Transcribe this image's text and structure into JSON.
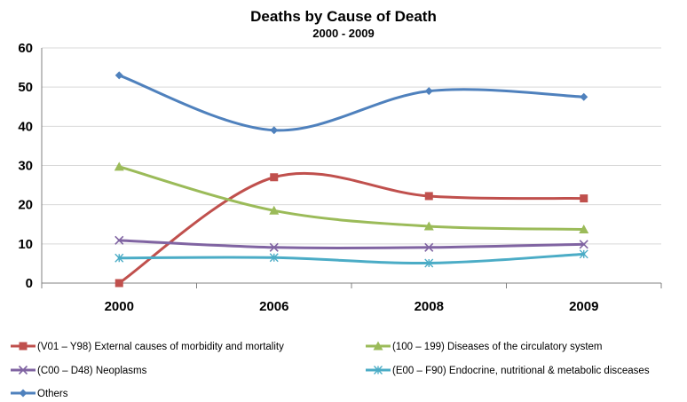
{
  "chart_data": {
    "type": "line",
    "title": "Deaths by Cause of Death",
    "subtitle": "2000 - 2009",
    "xlabel": "",
    "ylabel": "",
    "categories": [
      "2000",
      "2006",
      "2008",
      "2009"
    ],
    "ylim": [
      0,
      60
    ],
    "yticks": [
      0,
      10,
      20,
      30,
      40,
      50,
      60
    ],
    "grid": "horizontal",
    "legend_position": "bottom",
    "smooth": true,
    "series": [
      {
        "name": "(V01 – Y98) External causes of morbidity and mortality",
        "color": "#c0504d",
        "marker": "square",
        "values": [
          0,
          27,
          22.2,
          21.6
        ]
      },
      {
        "name": "(100 – 199) Diseases of the circulatory system",
        "color": "#9bbb59",
        "marker": "triangle",
        "values": [
          29.7,
          18.5,
          14.5,
          13.7
        ]
      },
      {
        "name": "(C00 – D48) Neoplasms",
        "color": "#8064a2",
        "marker": "x",
        "values": [
          10.9,
          9.1,
          9.1,
          9.9
        ]
      },
      {
        "name": "(E00 – F90) Endocrine, nutritional & metabolic disceases",
        "color": "#4bacc6",
        "marker": "star",
        "values": [
          6.4,
          6.5,
          5.1,
          7.4
        ]
      },
      {
        "name": "Others",
        "color": "#4f81bd",
        "marker": "diamond",
        "values": [
          53,
          39,
          49,
          47.5
        ]
      }
    ]
  }
}
